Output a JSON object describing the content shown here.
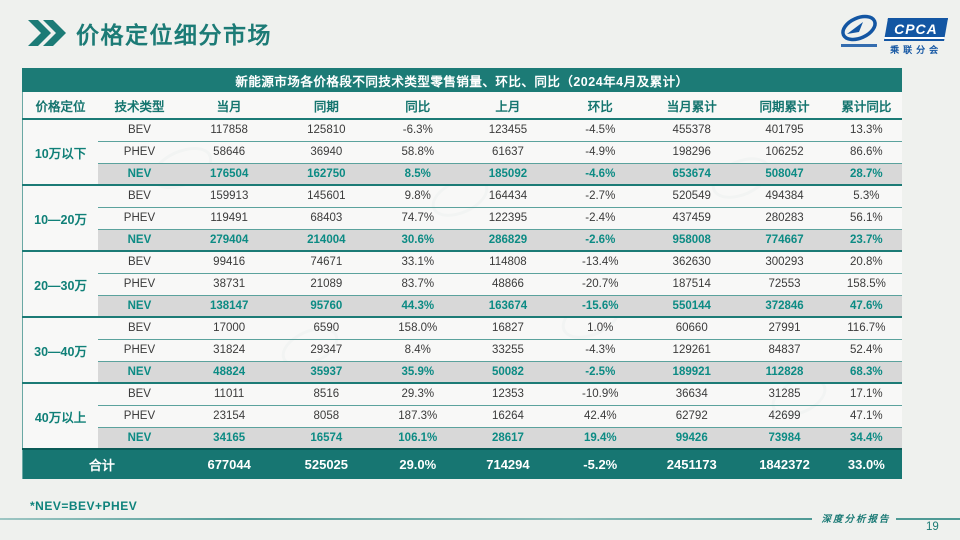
{
  "page": {
    "title": "价格定位细分市场",
    "footnote": "*NEV=BEV+PHEV",
    "footer_label": "深度分析报告",
    "page_number": "19"
  },
  "logo": {
    "name": "CPCA",
    "subtitle": "乘联分会"
  },
  "table": {
    "title": "新能源市场各价格段不同技术类型零售销量、环比、同比（2024年4月及累计）",
    "columns": [
      "价格定位",
      "技术类型",
      "当月",
      "同期",
      "同比",
      "上月",
      "环比",
      "当月累计",
      "同期累计",
      "累计同比"
    ],
    "groups": [
      {
        "label": "10万以下",
        "rows": [
          {
            "type": "BEV",
            "cells": [
              "117858",
              "125810",
              "-6.3%",
              "123455",
              "-4.5%",
              "455378",
              "401795",
              "13.3%"
            ]
          },
          {
            "type": "PHEV",
            "cells": [
              "58646",
              "36940",
              "58.8%",
              "61637",
              "-4.9%",
              "198296",
              "106252",
              "86.6%"
            ]
          },
          {
            "type": "NEV",
            "cells": [
              "176504",
              "162750",
              "8.5%",
              "185092",
              "-4.6%",
              "653674",
              "508047",
              "28.7%"
            ]
          }
        ]
      },
      {
        "label": "10—20万",
        "rows": [
          {
            "type": "BEV",
            "cells": [
              "159913",
              "145601",
              "9.8%",
              "164434",
              "-2.7%",
              "520549",
              "494384",
              "5.3%"
            ]
          },
          {
            "type": "PHEV",
            "cells": [
              "119491",
              "68403",
              "74.7%",
              "122395",
              "-2.4%",
              "437459",
              "280283",
              "56.1%"
            ]
          },
          {
            "type": "NEV",
            "cells": [
              "279404",
              "214004",
              "30.6%",
              "286829",
              "-2.6%",
              "958008",
              "774667",
              "23.7%"
            ]
          }
        ]
      },
      {
        "label": "20—30万",
        "rows": [
          {
            "type": "BEV",
            "cells": [
              "99416",
              "74671",
              "33.1%",
              "114808",
              "-13.4%",
              "362630",
              "300293",
              "20.8%"
            ]
          },
          {
            "type": "PHEV",
            "cells": [
              "38731",
              "21089",
              "83.7%",
              "48866",
              "-20.7%",
              "187514",
              "72553",
              "158.5%"
            ]
          },
          {
            "type": "NEV",
            "cells": [
              "138147",
              "95760",
              "44.3%",
              "163674",
              "-15.6%",
              "550144",
              "372846",
              "47.6%"
            ]
          }
        ]
      },
      {
        "label": "30—40万",
        "rows": [
          {
            "type": "BEV",
            "cells": [
              "17000",
              "6590",
              "158.0%",
              "16827",
              "1.0%",
              "60660",
              "27991",
              "116.7%"
            ]
          },
          {
            "type": "PHEV",
            "cells": [
              "31824",
              "29347",
              "8.4%",
              "33255",
              "-4.3%",
              "129261",
              "84837",
              "52.4%"
            ]
          },
          {
            "type": "NEV",
            "cells": [
              "48824",
              "35937",
              "35.9%",
              "50082",
              "-2.5%",
              "189921",
              "112828",
              "68.3%"
            ]
          }
        ]
      },
      {
        "label": "40万以上",
        "rows": [
          {
            "type": "BEV",
            "cells": [
              "11011",
              "8516",
              "29.3%",
              "12353",
              "-10.9%",
              "36634",
              "31285",
              "17.1%"
            ]
          },
          {
            "type": "PHEV",
            "cells": [
              "23154",
              "8058",
              "187.3%",
              "16264",
              "42.4%",
              "62792",
              "42699",
              "47.1%"
            ]
          },
          {
            "type": "NEV",
            "cells": [
              "34165",
              "16574",
              "106.1%",
              "28617",
              "19.4%",
              "99426",
              "73984",
              "34.4%"
            ]
          }
        ]
      }
    ],
    "total": {
      "label": "合计",
      "cells": [
        "677044",
        "525025",
        "29.0%",
        "714294",
        "-5.2%",
        "2451173",
        "1842372",
        "33.0%"
      ]
    }
  },
  "colors": {
    "teal_dark": "#1c7b76",
    "teal_text": "#0c8b84",
    "nev_row_gray": "#d8d8d8",
    "logo_blue": "#1356a3"
  }
}
